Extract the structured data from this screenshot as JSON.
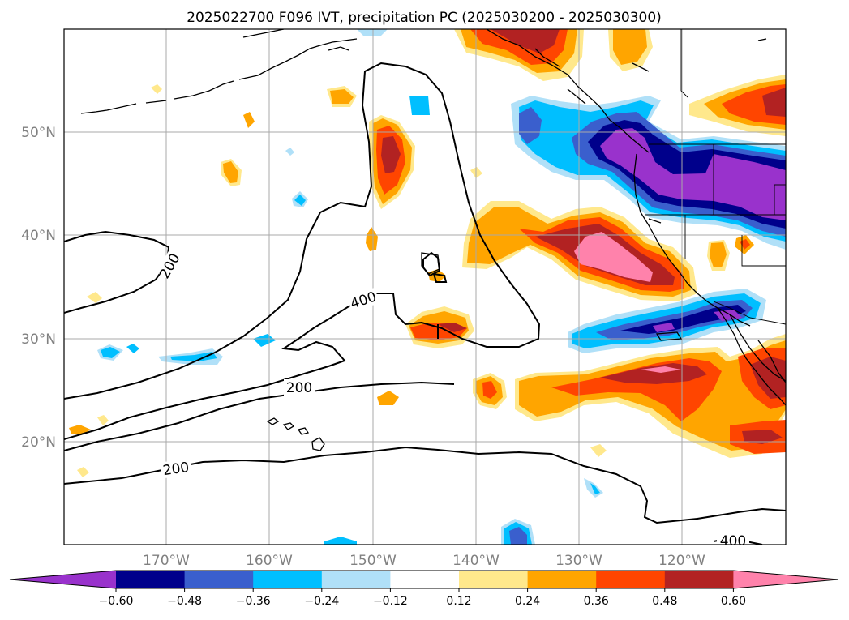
{
  "title": "2025022700 F096 IVT, precipitation PC (2025030200 - 2025030300)",
  "map": {
    "lat_labels": [
      "50°N",
      "40°N",
      "30°N",
      "20°N"
    ],
    "lon_labels": [
      "170°W",
      "160°W",
      "150°W",
      "140°W",
      "130°W",
      "120°W"
    ],
    "ivt_contour_labels": [
      "200",
      "400",
      "200",
      "200",
      "400"
    ],
    "gridlines": true,
    "projection": "PlateCarree",
    "extent_lon": [
      -180,
      -110
    ],
    "extent_lat": [
      10,
      60
    ]
  },
  "colorbar": {
    "ticks": [
      "−0.60",
      "−0.48",
      "−0.36",
      "−0.24",
      "−0.12",
      "0.12",
      "0.24",
      "0.36",
      "0.48",
      "0.60"
    ],
    "colors": [
      "#9932cc",
      "#00008b",
      "#3a5fcd",
      "#00bfff",
      "#b0e0f8",
      "#ffffff",
      "#ffe88c",
      "#ffa500",
      "#ff4500",
      "#b22222",
      "#ff82ab"
    ],
    "extend": "both"
  },
  "colors": {
    "purple": "#9932cc",
    "navy": "#00008b",
    "royal": "#3a5fcd",
    "sky": "#00bfff",
    "pale_blue": "#b0e0f8",
    "pale_yellow": "#ffe88c",
    "orange": "#ffa500",
    "red_orange": "#ff4500",
    "firebrick": "#b22222",
    "pink": "#ff82ab"
  }
}
